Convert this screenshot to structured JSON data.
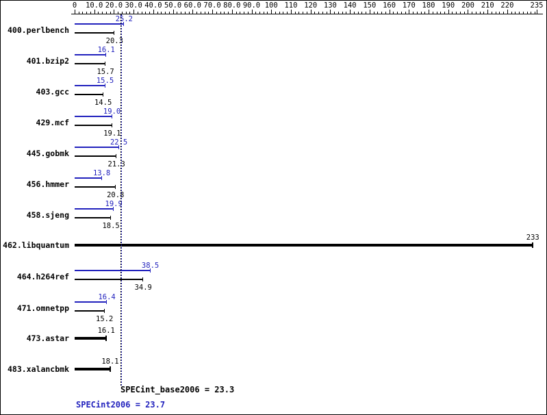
{
  "chart_data": {
    "type": "bar",
    "orientation": "horizontal",
    "title": "",
    "legend": "none",
    "grid": "off",
    "axis": {
      "min": 0,
      "max": 235,
      "ticks": [
        {
          "v": 0,
          "label": "0"
        },
        {
          "v": 10,
          "label": "10.0"
        },
        {
          "v": 20,
          "label": "20.0"
        },
        {
          "v": 30,
          "label": "30.0"
        },
        {
          "v": 40,
          "label": "40.0"
        },
        {
          "v": 50,
          "label": "50.0"
        },
        {
          "v": 60,
          "label": "60.0"
        },
        {
          "v": 70,
          "label": "70.0"
        },
        {
          "v": 80,
          "label": "80.0"
        },
        {
          "v": 90,
          "label": "90.0"
        },
        {
          "v": 100,
          "label": "100"
        },
        {
          "v": 110,
          "label": "110"
        },
        {
          "v": 120,
          "label": "120"
        },
        {
          "v": 130,
          "label": "130"
        },
        {
          "v": 140,
          "label": "140"
        },
        {
          "v": 150,
          "label": "150"
        },
        {
          "v": 160,
          "label": "160"
        },
        {
          "v": 170,
          "label": "170"
        },
        {
          "v": 180,
          "label": "180"
        },
        {
          "v": 190,
          "label": "190"
        },
        {
          "v": 200,
          "label": "200"
        },
        {
          "v": 210,
          "label": "210"
        },
        {
          "v": 220,
          "label": "220"
        },
        {
          "v": 235,
          "label": "235"
        }
      ]
    },
    "series_colors": {
      "peak": "#2121bd",
      "base": "#000000"
    },
    "benchmarks": [
      {
        "name": "400.perlbench",
        "peak": 25.2,
        "peak_label": "25.2",
        "base": 20.3,
        "base_label": "20.3"
      },
      {
        "name": "401.bzip2",
        "peak": 16.1,
        "peak_label": "16.1",
        "base": 15.7,
        "base_label": "15.7"
      },
      {
        "name": "403.gcc",
        "peak": 15.5,
        "peak_label": "15.5",
        "base": 14.5,
        "base_label": "14.5"
      },
      {
        "name": "429.mcf",
        "peak": 19.0,
        "peak_label": "19.0",
        "base": 19.1,
        "base_label": "19.1"
      },
      {
        "name": "445.gobmk",
        "peak": 22.5,
        "peak_label": "22.5",
        "base": 21.3,
        "base_label": "21.3"
      },
      {
        "name": "456.hmmer",
        "peak": 13.8,
        "peak_label": "13.8",
        "base": 20.8,
        "base_label": "20.8"
      },
      {
        "name": "458.sjeng",
        "peak": 19.9,
        "peak_label": "19.9",
        "base": 18.5,
        "base_label": "18.5"
      },
      {
        "name": "462.libquantum",
        "single": 233,
        "single_label": "233"
      },
      {
        "name": "464.h264ref",
        "peak": 38.5,
        "peak_label": "38.5",
        "base": 34.9,
        "base_label": "34.9"
      },
      {
        "name": "471.omnetpp",
        "peak": 16.4,
        "peak_label": "16.4",
        "base": 15.2,
        "base_label": "15.2"
      },
      {
        "name": "473.astar",
        "single": 16.1,
        "single_label": "16.1"
      },
      {
        "name": "483.xalancbmk",
        "single": 18.1,
        "single_label": "18.1"
      }
    ],
    "summary": {
      "base_label": "SPECint_base2006 = 23.3",
      "base_value": 23.3,
      "peak_label": "SPECint2006 = 23.7",
      "peak_value": 23.7
    }
  }
}
